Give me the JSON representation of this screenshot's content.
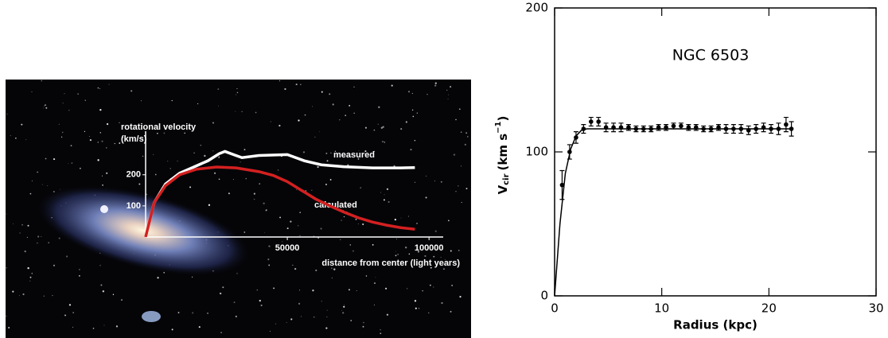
{
  "chart_data": [
    {
      "type": "line",
      "ylabel": [
        "rotational velocity",
        "(km/s)"
      ],
      "xlabel": "distance from center (light years)",
      "xlim": [
        0,
        105000
      ],
      "ylim": [
        0,
        340
      ],
      "xticks": [
        50000,
        100000
      ],
      "yticks": [
        100,
        200
      ],
      "series": [
        {
          "name": "measured",
          "color": "#ffffff",
          "x": [
            0,
            3000,
            7000,
            12000,
            17000,
            22000,
            26000,
            28000,
            31000,
            34000,
            40000,
            50000,
            56000,
            62000,
            70000,
            80000,
            90000,
            95000
          ],
          "values": [
            0,
            110,
            170,
            205,
            225,
            245,
            268,
            275,
            265,
            255,
            262,
            265,
            245,
            232,
            226,
            222,
            222,
            223
          ]
        },
        {
          "name": "calculated",
          "color": "#d42020",
          "x": [
            0,
            3000,
            7000,
            12000,
            18000,
            25000,
            32000,
            40000,
            45000,
            50000,
            55000,
            60000,
            65000,
            70000,
            75000,
            80000,
            85000,
            90000,
            95000
          ],
          "values": [
            0,
            110,
            165,
            200,
            218,
            225,
            222,
            210,
            198,
            178,
            150,
            122,
            100,
            80,
            62,
            48,
            38,
            30,
            25
          ]
        }
      ]
    },
    {
      "type": "scatter",
      "title": "NGC 6503",
      "xlabel": "Radius (kpc)",
      "ylabel": {
        "symbol": "V",
        "sub": "cir",
        "unit": "(km s",
        "sup": "−1",
        "close": ")"
      },
      "xlim": [
        0,
        30
      ],
      "ylim": [
        0,
        200
      ],
      "xticks": [
        0,
        10,
        20,
        30
      ],
      "yticks": [
        0,
        100,
        200
      ],
      "series": [
        {
          "color": "#000000",
          "x": [
            0.7,
            1.4,
            2.0,
            2.7,
            3.4,
            4.1,
            4.8,
            5.5,
            6.2,
            6.9,
            7.6,
            8.3,
            9.0,
            9.7,
            10.4,
            11.1,
            11.8,
            12.5,
            13.2,
            13.9,
            14.6,
            15.3,
            16.0,
            16.7,
            17.4,
            18.1,
            18.8,
            19.5,
            20.2,
            20.9,
            21.6,
            22.1
          ],
          "values": [
            77,
            100,
            110,
            116,
            121,
            121,
            117,
            117,
            117,
            117,
            116,
            116,
            116,
            117,
            117,
            118,
            118,
            117,
            117,
            116,
            116,
            117,
            116,
            116,
            116,
            115,
            116,
            117,
            116,
            116,
            119,
            116
          ],
          "errors": [
            10,
            5,
            4,
            3,
            3,
            3,
            3,
            3,
            3,
            2,
            2,
            2,
            2,
            2,
            2,
            2,
            2,
            2,
            2,
            2,
            2,
            2,
            3,
            3,
            3,
            3,
            3,
            3,
            3,
            4,
            5,
            5
          ]
        }
      ],
      "curve": {
        "color": "#000000",
        "x": [
          0,
          0.5,
          1,
          1.5,
          2,
          2.5,
          3,
          4,
          5,
          10,
          15,
          22
        ],
        "values": [
          0,
          50,
          85,
          102,
          111,
          115,
          116,
          116,
          116,
          116,
          116,
          116
        ]
      }
    }
  ]
}
